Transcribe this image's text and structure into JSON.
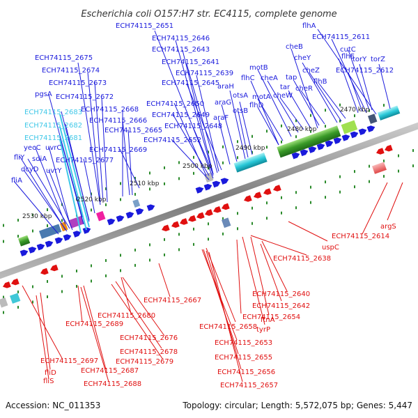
{
  "title": "Escherichia coli O157:H7 str. EC4115, complete genome",
  "footer": {
    "accession": "Accession: NC_011353",
    "stats": "Topology: circular; Length: 5,572,075 bp; Genes: 5,447"
  },
  "colors": {
    "forward": "#1a1adc",
    "reverse": "#e01010",
    "highlight": "#40c8e8",
    "backbone": "#808080",
    "tick": "#2a8a2a"
  },
  "kbp_markers": [
    "2470 kbp",
    "2480 kbp",
    "2490 kbp",
    "2500 kbp",
    "2510 kbp",
    "2520 kbp",
    "2530 kbp"
  ],
  "top_labels": [
    {
      "text": "ECH74115_2651",
      "c": "blue"
    },
    {
      "text": "ECH74115_2646",
      "c": "blue"
    },
    {
      "text": "ECH74115_2643",
      "c": "blue"
    },
    {
      "text": "ECH74115_2641",
      "c": "blue"
    },
    {
      "text": "ECH74115_2639",
      "c": "blue"
    },
    {
      "text": "ECH74115_2645",
      "c": "blue"
    },
    {
      "text": "ECH74115_2650",
      "c": "blue"
    },
    {
      "text": "ECH74115_2649",
      "c": "blue"
    },
    {
      "text": "ECH74115_2648",
      "c": "blue"
    },
    {
      "text": "ECH74115_2652",
      "c": "blue"
    },
    {
      "text": "ECH74115_2675",
      "c": "blue"
    },
    {
      "text": "ECH74115_2674",
      "c": "blue"
    },
    {
      "text": "ECH74115_2673",
      "c": "blue"
    },
    {
      "text": "pgsA",
      "c": "blue"
    },
    {
      "text": "ECH74115_2672",
      "c": "blue"
    },
    {
      "text": "ECH74115_2683",
      "c": "cyan"
    },
    {
      "text": "ECH74115_2668",
      "c": "blue"
    },
    {
      "text": "ECH74115_2682",
      "c": "cyan"
    },
    {
      "text": "ECH74115_2666",
      "c": "blue"
    },
    {
      "text": "ECH74115_2665",
      "c": "blue"
    },
    {
      "text": "ECH74115_2681",
      "c": "cyan"
    },
    {
      "text": "yecC",
      "c": "blue"
    },
    {
      "text": "uvrC",
      "c": "blue"
    },
    {
      "text": "ECH74115_2669",
      "c": "blue"
    },
    {
      "text": "fliY",
      "c": "blue"
    },
    {
      "text": "sdiA",
      "c": "blue"
    },
    {
      "text": "ECH74115_2677",
      "c": "blue"
    },
    {
      "text": "dcyD",
      "c": "blue"
    },
    {
      "text": "uvrY",
      "c": "blue"
    },
    {
      "text": "fliA",
      "c": "blue"
    },
    {
      "text": "flhA",
      "c": "blue"
    },
    {
      "text": "ECH74115_2611",
      "c": "blue"
    },
    {
      "text": "cheB",
      "c": "blue"
    },
    {
      "text": "cutC",
      "c": "blue"
    },
    {
      "text": "cheY",
      "c": "blue"
    },
    {
      "text": "flhE",
      "c": "blue"
    },
    {
      "text": "torY",
      "c": "blue"
    },
    {
      "text": "torZ",
      "c": "blue"
    },
    {
      "text": "motB",
      "c": "blue"
    },
    {
      "text": "cheZ",
      "c": "blue"
    },
    {
      "text": "ECH74115_2612",
      "c": "blue"
    },
    {
      "text": "flhC",
      "c": "blue"
    },
    {
      "text": "cheA",
      "c": "blue"
    },
    {
      "text": "tap",
      "c": "blue"
    },
    {
      "text": "flhB",
      "c": "blue"
    },
    {
      "text": "araH",
      "c": "blue"
    },
    {
      "text": "tar",
      "c": "blue"
    },
    {
      "text": "cheR",
      "c": "blue"
    },
    {
      "text": "otsA",
      "c": "blue"
    },
    {
      "text": "motA",
      "c": "blue"
    },
    {
      "text": "cheW",
      "c": "blue"
    },
    {
      "text": "araG",
      "c": "blue"
    },
    {
      "text": "flhD",
      "c": "blue"
    },
    {
      "text": "otsB",
      "c": "blue"
    },
    {
      "text": "araF",
      "c": "blue"
    }
  ],
  "bottom_labels": [
    {
      "text": "argS"
    },
    {
      "text": "ECH74115_2614"
    },
    {
      "text": "uspC"
    },
    {
      "text": "ECH74115_2638"
    },
    {
      "text": "ECH74115_2640"
    },
    {
      "text": "ECH74115_2642"
    },
    {
      "text": "ECH74115_2667"
    },
    {
      "text": "ftnA"
    },
    {
      "text": "ECH74115_2654"
    },
    {
      "text": "tyrP"
    },
    {
      "text": "ECH74115_2680"
    },
    {
      "text": "ECH74115_2658"
    },
    {
      "text": "ECH74115_2689"
    },
    {
      "text": "ECH74115_2676"
    },
    {
      "text": "ECH74115_2653"
    },
    {
      "text": "ECH74115_2678"
    },
    {
      "text": "ECH74115_2655"
    },
    {
      "text": "ECH74115_2679"
    },
    {
      "text": "ECH74115_2697"
    },
    {
      "text": "ECH74115_2687"
    },
    {
      "text": "ECH74115_2656"
    },
    {
      "text": "fliD"
    },
    {
      "text": "fliS"
    },
    {
      "text": "ECH74115_2688"
    },
    {
      "text": "ECH74115_2657"
    }
  ]
}
